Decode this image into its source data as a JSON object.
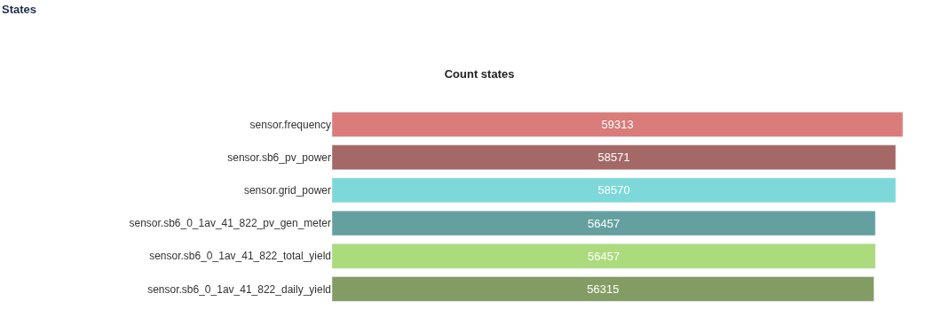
{
  "chart_data": {
    "type": "bar",
    "orientation": "horizontal",
    "title": "Count states",
    "annotations": [
      "States"
    ],
    "categories": [
      "sensor.frequency",
      "sensor.sb6_pv_power",
      "sensor.grid_power",
      "sensor.sb6_0_1av_41_822_pv_gen_meter",
      "sensor.sb6_0_1av_41_822_total_yield",
      "sensor.sb6_0_1av_41_822_daily_yield"
    ],
    "values": [
      59313,
      58571,
      58570,
      56457,
      56457,
      56315
    ],
    "colors": [
      "#d97c7a",
      "#a46966",
      "#7dd8d9",
      "#64a0a0",
      "#abdb7c",
      "#839c63"
    ],
    "data_labels": true
  }
}
